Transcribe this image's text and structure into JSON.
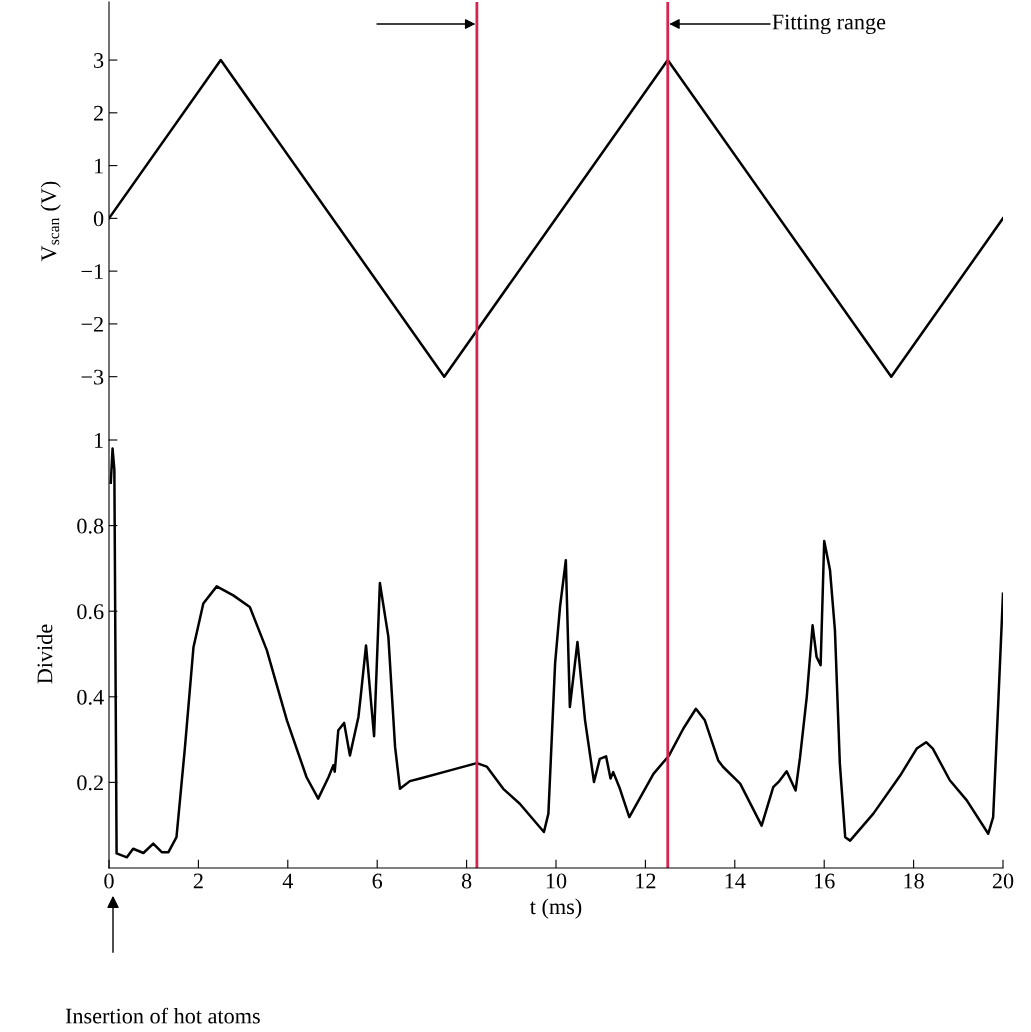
{
  "chart_data": [
    {
      "type": "line",
      "ylabel": "V$_{scan}$ (V)",
      "x": [
        0,
        2.5,
        7.5,
        12.5,
        17.5,
        20
      ],
      "series": [
        {
          "color": "#000000",
          "values": [
            0,
            3,
            -3,
            3,
            -3,
            0
          ]
        }
      ],
      "xlim": [
        0,
        20
      ],
      "ylim": [
        -4.2,
        4.1
      ],
      "yticks": [
        -3,
        -2,
        -1,
        0,
        1,
        2,
        3
      ],
      "tick_labels": "y",
      "ref_lines": [
        {
          "axis": "x",
          "value": 8.23,
          "color": "#d6244f"
        },
        {
          "axis": "x",
          "value": 12.5,
          "color": "#d6244f"
        }
      ],
      "annotations": [
        "Fitting range"
      ]
    },
    {
      "type": "line",
      "xlabel": "t (ms)",
      "ylabel": "Divide",
      "x": [
        0.04,
        0.08,
        0.12,
        0.17,
        0.4,
        0.54,
        0.77,
        0.99,
        1.18,
        1.33,
        1.51,
        1.7,
        1.89,
        2.11,
        2.41,
        2.78,
        3.15,
        3.53,
        3.98,
        4.42,
        4.68,
        4.91,
        5.02,
        5.05,
        5.13,
        5.26,
        5.39,
        5.58,
        5.63,
        5.75,
        5.93,
        6.06,
        6.25,
        6.4,
        6.51,
        6.73,
        6.96,
        7.63,
        8.23,
        8.45,
        8.82,
        9.19,
        9.73,
        9.83,
        9.98,
        10.09,
        10.22,
        10.31,
        10.48,
        10.65,
        10.85,
        10.98,
        11.12,
        11.22,
        11.28,
        11.43,
        11.64,
        12.18,
        12.53,
        12.85,
        13.13,
        13.33,
        13.63,
        13.74,
        14.12,
        14.6,
        14.86,
        14.98,
        15.16,
        15.36,
        15.46,
        15.61,
        15.74,
        15.83,
        15.92,
        16.0,
        16.13,
        16.24,
        16.35,
        16.47,
        16.58,
        17.1,
        17.7,
        18.07,
        18.28,
        18.43,
        18.81,
        19.19,
        19.67,
        19.78,
        19.9,
        20.0
      ],
      "series": [
        {
          "color": "#000000",
          "values": [
            0.9,
            0.98,
            0.93,
            0.034,
            0.025,
            0.045,
            0.035,
            0.057,
            0.037,
            0.037,
            0.072,
            0.283,
            0.516,
            0.618,
            0.658,
            0.637,
            0.61,
            0.509,
            0.345,
            0.212,
            0.162,
            0.212,
            0.24,
            0.225,
            0.322,
            0.339,
            0.263,
            0.353,
            0.4,
            0.52,
            0.308,
            0.666,
            0.54,
            0.283,
            0.185,
            0.203,
            0.209,
            0.228,
            0.245,
            0.237,
            0.185,
            0.15,
            0.084,
            0.127,
            0.478,
            0.61,
            0.719,
            0.376,
            0.528,
            0.345,
            0.201,
            0.255,
            0.261,
            0.209,
            0.224,
            0.185,
            0.119,
            0.22,
            0.263,
            0.326,
            0.372,
            0.345,
            0.251,
            0.236,
            0.197,
            0.099,
            0.189,
            0.201,
            0.226,
            0.181,
            0.259,
            0.4,
            0.567,
            0.493,
            0.474,
            0.764,
            0.696,
            0.556,
            0.244,
            0.072,
            0.064,
            0.127,
            0.216,
            0.279,
            0.294,
            0.279,
            0.205,
            0.158,
            0.08,
            0.119,
            0.4,
            0.641
          ]
        }
      ],
      "xlim": [
        0,
        20
      ],
      "xticks": [
        0,
        2,
        4,
        6,
        8,
        10,
        12,
        14,
        16,
        18,
        20
      ],
      "ylim": [
        0,
        1
      ],
      "yticks": [
        0.2,
        0.4,
        0.6,
        0.8,
        1
      ],
      "ref_lines": [
        {
          "axis": "x",
          "value": 8.23,
          "color": "#d6244f"
        },
        {
          "axis": "x",
          "value": 12.5,
          "color": "#d6244f"
        }
      ],
      "annotations": [
        "Insertion of hot atoms"
      ]
    }
  ]
}
